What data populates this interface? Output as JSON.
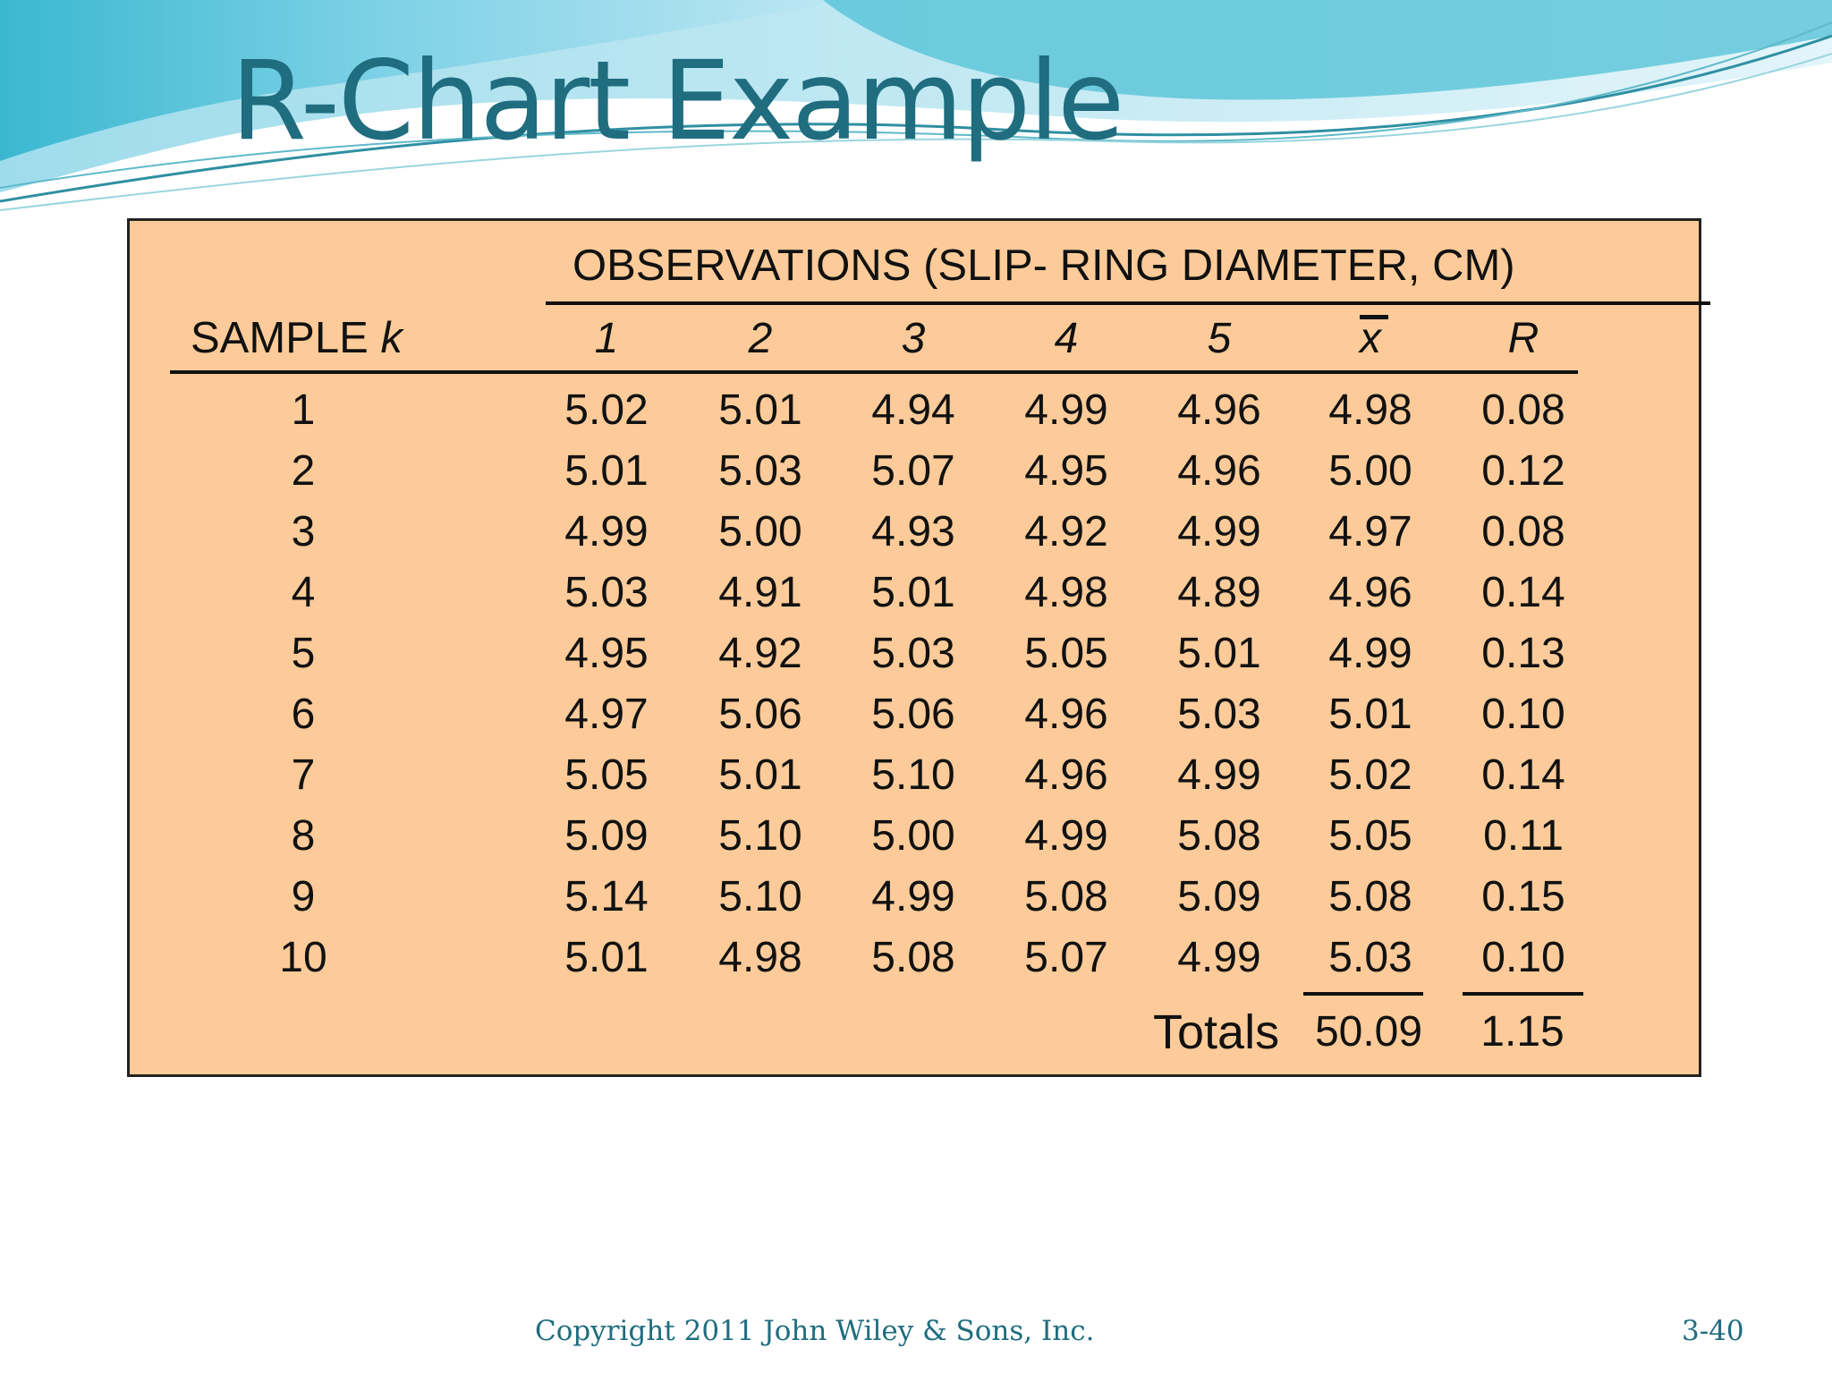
{
  "slide": {
    "title": "R-Chart Example",
    "footer_copyright": "Copyright 2011 John Wiley & Sons, Inc.",
    "page_number": "3-40"
  },
  "colors": {
    "title": "#1f6d7f",
    "panel_fill": "#fdcb99",
    "wave_light": "#bfe7f3",
    "wave_mid": "#7ed1e6",
    "wave_dark": "#3ab8d0"
  },
  "table": {
    "group_header": "OBSERVATIONS (SLIP- RING DIAMETER, CM)",
    "sample_header": "SAMPLE",
    "sample_header_var": "k",
    "columns": [
      "1",
      "2",
      "3",
      "4",
      "5",
      "x",
      "R"
    ],
    "rows": [
      {
        "sample": "1",
        "obs": [
          "5.02",
          "5.01",
          "4.94",
          "4.99",
          "4.96"
        ],
        "xbar": "4.98",
        "r": "0.08"
      },
      {
        "sample": "2",
        "obs": [
          "5.01",
          "5.03",
          "5.07",
          "4.95",
          "4.96"
        ],
        "xbar": "5.00",
        "r": "0.12"
      },
      {
        "sample": "3",
        "obs": [
          "4.99",
          "5.00",
          "4.93",
          "4.92",
          "4.99"
        ],
        "xbar": "4.97",
        "r": "0.08"
      },
      {
        "sample": "4",
        "obs": [
          "5.03",
          "4.91",
          "5.01",
          "4.98",
          "4.89"
        ],
        "xbar": "4.96",
        "r": "0.14"
      },
      {
        "sample": "5",
        "obs": [
          "4.95",
          "4.92",
          "5.03",
          "5.05",
          "5.01"
        ],
        "xbar": "4.99",
        "r": "0.13"
      },
      {
        "sample": "6",
        "obs": [
          "4.97",
          "5.06",
          "5.06",
          "4.96",
          "5.03"
        ],
        "xbar": "5.01",
        "r": "0.10"
      },
      {
        "sample": "7",
        "obs": [
          "5.05",
          "5.01",
          "5.10",
          "4.96",
          "4.99"
        ],
        "xbar": "5.02",
        "r": "0.14"
      },
      {
        "sample": "8",
        "obs": [
          "5.09",
          "5.10",
          "5.00",
          "4.99",
          "5.08"
        ],
        "xbar": "5.05",
        "r": "0.11"
      },
      {
        "sample": "9",
        "obs": [
          "5.14",
          "5.10",
          "4.99",
          "5.08",
          "5.09"
        ],
        "xbar": "5.08",
        "r": "0.15"
      },
      {
        "sample": "10",
        "obs": [
          "5.01",
          "4.98",
          "5.08",
          "5.07",
          "4.99"
        ],
        "xbar": "5.03",
        "r": "0.10"
      }
    ],
    "totals": {
      "label": "Totals",
      "xbar": "50.09",
      "r": "1.15"
    }
  }
}
